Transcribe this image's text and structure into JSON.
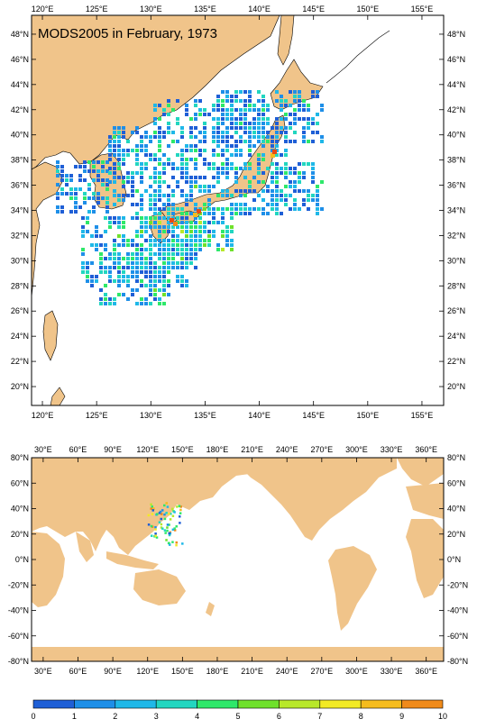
{
  "colors": {
    "land": "#f0c48a",
    "ocean": "#ffffff",
    "frame": "#000000"
  },
  "top_map": {
    "title": "MODS2005 in February, 1973",
    "lon_labels": [
      "120°E",
      "125°E",
      "130°E",
      "135°E",
      "140°E",
      "145°E",
      "150°E",
      "155°E"
    ],
    "lat_labels": [
      "48°N",
      "46°N",
      "44°N",
      "42°N",
      "40°N",
      "38°N",
      "36°N",
      "34°N",
      "32°N",
      "30°N",
      "28°N",
      "26°N",
      "24°N",
      "22°N",
      "20°N"
    ],
    "lon_range": [
      119,
      157
    ],
    "lat_range": [
      18.5,
      49.5
    ]
  },
  "bottom_map": {
    "lon_labels": [
      "30°E",
      "60°E",
      "90°E",
      "120°E",
      "150°E",
      "180°E",
      "210°E",
      "240°E",
      "270°E",
      "300°E",
      "330°E",
      "360°E"
    ],
    "lat_labels": [
      "80°N",
      "60°N",
      "40°N",
      "20°N",
      "0°N",
      "-20°N",
      "-40°N",
      "-60°N",
      "-80°N"
    ],
    "lon_range": [
      20,
      375
    ],
    "lat_range": [
      -80,
      80
    ]
  },
  "colorbar": {
    "labels": [
      "0",
      "1",
      "2",
      "3",
      "4",
      "5",
      "6",
      "7",
      "8",
      "9",
      "10"
    ],
    "colors": [
      "#1f5fd6",
      "#1e8fe8",
      "#1fb8e8",
      "#22d6c0",
      "#2ee86a",
      "#6fe12b",
      "#b8e82a",
      "#f2ea24",
      "#f5bc1e",
      "#f08a1a",
      "#e84a14"
    ]
  }
}
